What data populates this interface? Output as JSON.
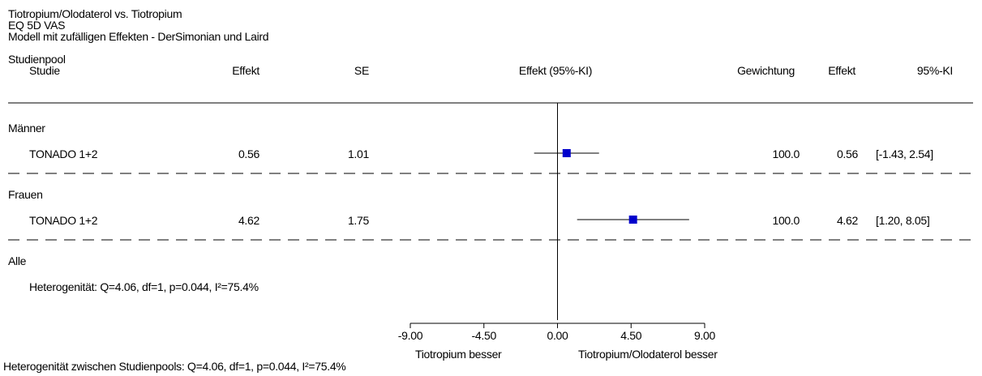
{
  "header": {
    "title_line1": "Tiotropium/Olodaterol vs. Tiotropium",
    "title_line2": "EQ 5D VAS",
    "title_line3": "Modell mit zufälligen Effekten - DerSimonian und Laird"
  },
  "columns": {
    "pool": "Studienpool",
    "study": "Studie",
    "effect": "Effekt",
    "se": "SE",
    "effect_ci": "Effekt (95%-KI)",
    "weight": "Gewichtung",
    "effect2": "Effekt",
    "ci": "95%-KI"
  },
  "groups": [
    {
      "name": "Männer",
      "study": "TONADO 1+2",
      "effect": "0.56",
      "se": "1.01",
      "weight": "100.0",
      "effect_display": "0.56",
      "ci_display": "[-1.43, 2.54]"
    },
    {
      "name": "Frauen",
      "study": "TONADO 1+2",
      "effect": "4.62",
      "se": "1.75",
      "weight": "100.0",
      "effect_display": "4.62",
      "ci_display": "[1.20, 8.05]"
    }
  ],
  "overall": {
    "label": "Alle",
    "heterogeneity": "Heterogenität: Q=4.06, df=1, p=0.044, I²=75.4%"
  },
  "axis": {
    "ticks": [
      "-9.00",
      "-4.50",
      "0.00",
      "4.50",
      "9.00"
    ],
    "left_label": "Tiotropium besser",
    "right_label": "Tiotropium/Olodaterol besser"
  },
  "footer": "Heterogenität zwischen Studienpools: Q=4.06, df=1, p=0.044, I²=75.4%",
  "colors": {
    "marker": "#0000cc",
    "line": "#000000"
  },
  "chart_data": {
    "type": "forest",
    "xlim": [
      -9,
      9
    ],
    "xticks": [
      -9,
      -4.5,
      0,
      4.5,
      9
    ],
    "series": [
      {
        "group": "Männer",
        "study": "TONADO 1+2",
        "effect": 0.56,
        "lower": -1.43,
        "upper": 2.54,
        "se": 1.01,
        "weight": 100.0
      },
      {
        "group": "Frauen",
        "study": "TONADO 1+2",
        "effect": 4.62,
        "lower": 1.2,
        "upper": 8.05,
        "se": 1.75,
        "weight": 100.0
      }
    ]
  }
}
